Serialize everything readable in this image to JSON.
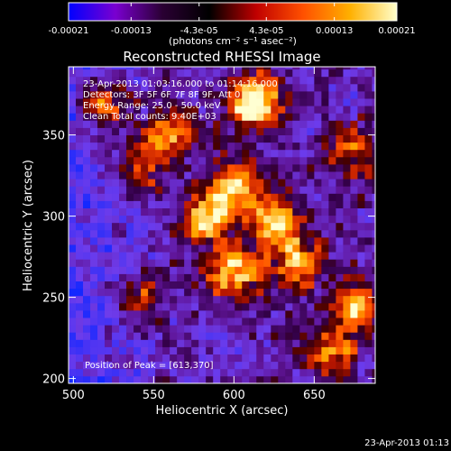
{
  "colorbar": {
    "tick_labels": [
      "-0.00021",
      "-0.00013",
      "-4.3e-05",
      "4.3e-05",
      "0.00013",
      "0.00021"
    ],
    "ticks": [
      -0.00021,
      -0.00013,
      -4.3e-05,
      4.3e-05,
      0.00013,
      0.00021
    ],
    "range": [
      -0.00021,
      0.00021
    ],
    "unit_label": "(photons cm⁻² s⁻¹ asec⁻²)",
    "colors": [
      "#0000ff",
      "#7a00d0",
      "#2a0033",
      "#000000",
      "#c00000",
      "#ff5000",
      "#ffb000",
      "#ffffcc"
    ]
  },
  "chart_data": {
    "type": "heatmap",
    "title": "Reconstructed RHESSI Image",
    "xlabel": "Heliocentric X (arcsec)",
    "ylabel": "Heliocentric Y (arcsec)",
    "xlim": [
      497,
      688
    ],
    "ylim": [
      197,
      392
    ],
    "xticks": [
      500,
      550,
      600,
      650
    ],
    "yticks": [
      200,
      250,
      300,
      350
    ],
    "grid": false,
    "info_lines": [
      "23-Apr-2013 01:03:16.000 to 01:14:16.000",
      "Detectors: 3F 5F 6F 7F 8F 9F, Att 0",
      "Energy Range: 25.0 - 50.0 keV",
      "Clean    Total counts: 9.40E+03"
    ],
    "peak_label": "Position of Peak = [613,370]",
    "peak": [
      613,
      370
    ],
    "sources": [
      {
        "x": 613,
        "y": 370,
        "amp": 1.0
      },
      {
        "x": 600,
        "y": 318,
        "amp": 0.85
      },
      {
        "x": 583,
        "y": 298,
        "amp": 0.75
      },
      {
        "x": 626,
        "y": 296,
        "amp": 0.8
      },
      {
        "x": 600,
        "y": 265,
        "amp": 0.75
      },
      {
        "x": 640,
        "y": 270,
        "amp": 0.6
      },
      {
        "x": 560,
        "y": 350,
        "amp": 0.65
      },
      {
        "x": 540,
        "y": 330,
        "amp": 0.45
      },
      {
        "x": 675,
        "y": 245,
        "amp": 0.7
      },
      {
        "x": 660,
        "y": 215,
        "amp": 0.55
      },
      {
        "x": 675,
        "y": 340,
        "amp": 0.45
      },
      {
        "x": 520,
        "y": 370,
        "amp": 0.5
      },
      {
        "x": 540,
        "y": 250,
        "amp": 0.4
      }
    ]
  },
  "footer": {
    "timestamp": "23-Apr-2013 01:13"
  }
}
